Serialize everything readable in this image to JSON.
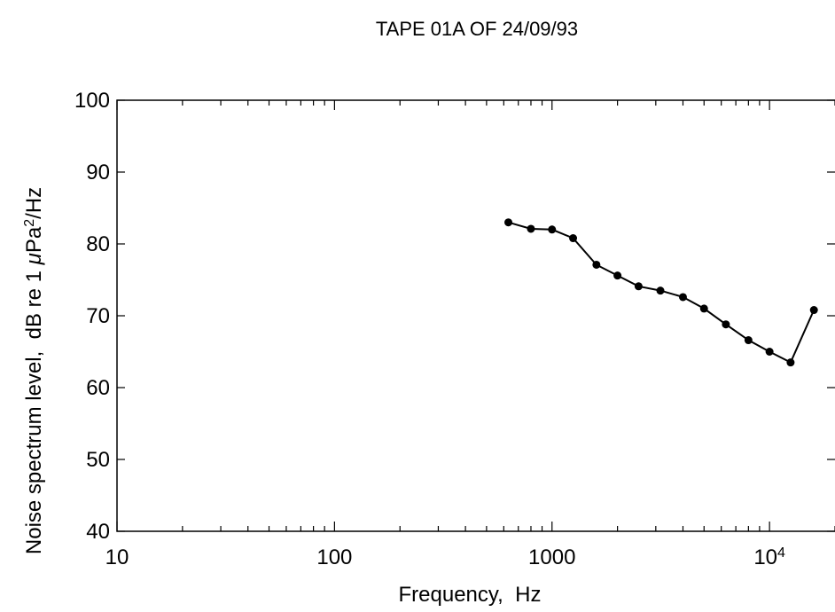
{
  "chart_data": {
    "type": "line",
    "title": "TAPE 01A OF 24/09/93",
    "xlabel": "Frequency,  Hz",
    "ylabel_parts": {
      "prefix": "Noise spectrum level,  dB re 1 ",
      "mu": "μ",
      "unit": "Pa",
      "sup": "2",
      "suffix": "/Hz"
    },
    "x_scale": "log",
    "xlim": [
      10,
      20000
    ],
    "ylim": [
      40,
      100
    ],
    "x_ticks": [
      {
        "value": 10,
        "label": "10"
      },
      {
        "value": 100,
        "label": "100"
      },
      {
        "value": 1000,
        "label": "1000"
      },
      {
        "value": 10000,
        "label_base": "10",
        "label_exp": "4"
      }
    ],
    "y_ticks": [
      40,
      50,
      60,
      70,
      80,
      90,
      100
    ],
    "y_tick_labels": [
      "40",
      "50",
      "60",
      "70",
      "80",
      "90",
      "100"
    ],
    "grid": false,
    "legend": "none",
    "series": [
      {
        "x": [
          630,
          800,
          1000,
          1250,
          1600,
          2000,
          2500,
          3150,
          4000,
          5000,
          6300,
          8000,
          10000,
          12500,
          16000
        ],
        "y": [
          83.0,
          82.1,
          82.0,
          80.8,
          77.1,
          75.6,
          74.1,
          73.5,
          72.6,
          71.0,
          68.8,
          66.6,
          65.0,
          63.5,
          70.8
        ]
      }
    ]
  }
}
